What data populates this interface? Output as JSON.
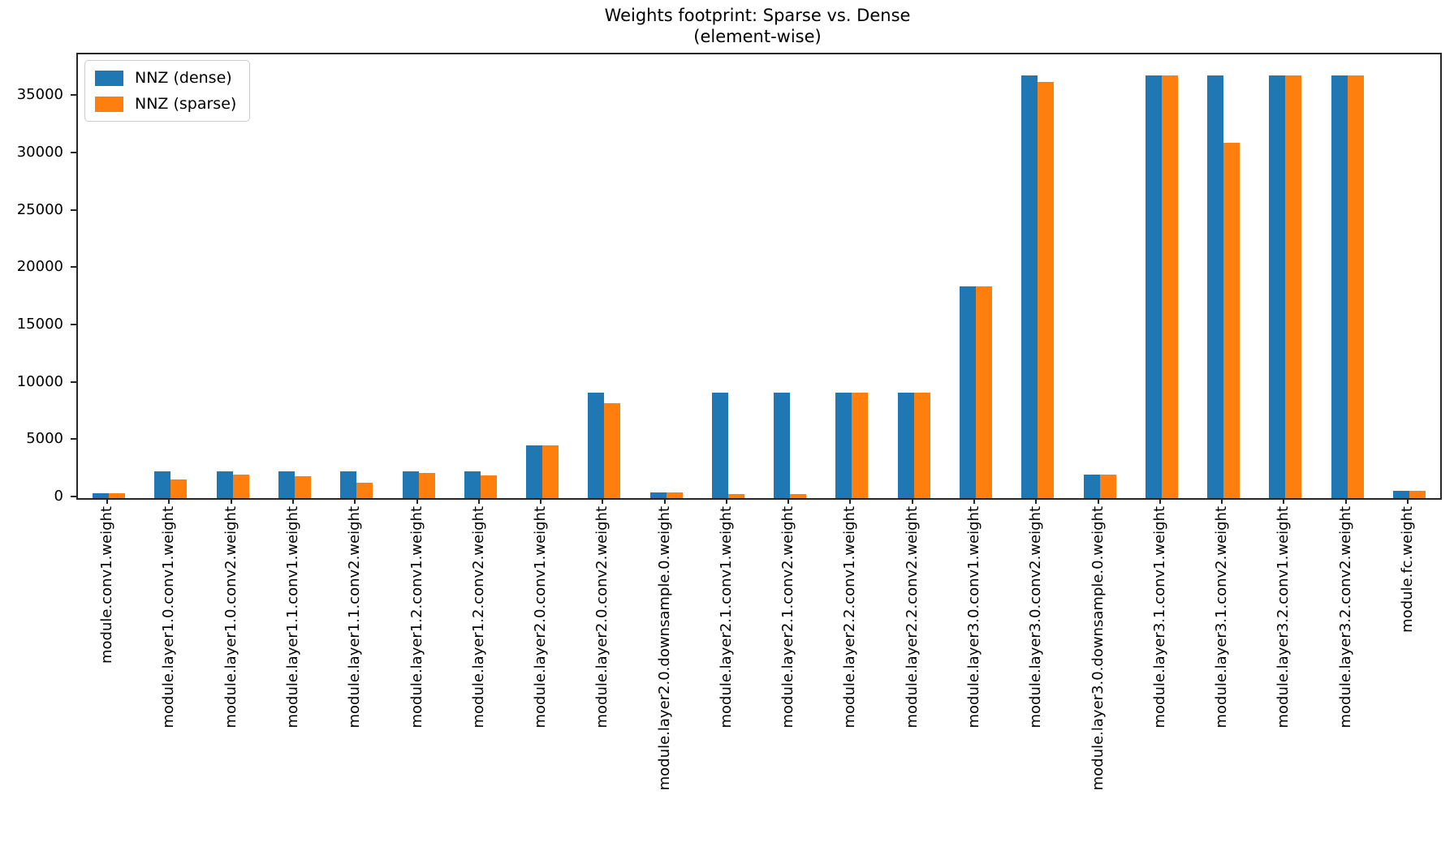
{
  "figure": {
    "title_line1": "Weights footprint: Sparse vs. Dense",
    "title_line2": "(element-wise)"
  },
  "chart_data": {
    "type": "bar",
    "title": "Weights footprint: Sparse vs. Dense\n(element-wise)",
    "xlabel": "",
    "ylabel": "",
    "grid": false,
    "legend_position": "upper left",
    "ylim": [
      0,
      38700
    ],
    "yticks": [
      0,
      5000,
      10000,
      15000,
      20000,
      25000,
      30000,
      35000
    ],
    "categories": [
      "module.conv1.weight",
      "module.layer1.0.conv1.weight",
      "module.layer1.0.conv2.weight",
      "module.layer1.1.conv1.weight",
      "module.layer1.1.conv2.weight",
      "module.layer1.2.conv1.weight",
      "module.layer1.2.conv2.weight",
      "module.layer2.0.conv1.weight",
      "module.layer2.0.conv2.weight",
      "module.layer2.0.downsample.0.weight",
      "module.layer2.1.conv1.weight",
      "module.layer2.1.conv2.weight",
      "module.layer2.2.conv1.weight",
      "module.layer2.2.conv2.weight",
      "module.layer3.0.conv1.weight",
      "module.layer3.0.conv2.weight",
      "module.layer3.0.downsample.0.weight",
      "module.layer3.1.conv1.weight",
      "module.layer3.1.conv2.weight",
      "module.layer3.2.conv1.weight",
      "module.layer3.2.conv2.weight",
      "module.fc.weight"
    ],
    "series": [
      {
        "name": "NNZ (dense)",
        "color": "#1f77b4",
        "values": [
          432,
          2304,
          2304,
          2304,
          2304,
          2304,
          2304,
          4608,
          9216,
          512,
          9216,
          9216,
          9216,
          9216,
          18432,
          36864,
          2048,
          36864,
          36864,
          36864,
          36864,
          640
        ]
      },
      {
        "name": "NNZ (sparse)",
        "color": "#ff7f0e",
        "values": [
          432,
          1600,
          2050,
          1930,
          1370,
          2190,
          1950,
          4608,
          8300,
          512,
          330,
          330,
          9216,
          9216,
          18432,
          36300,
          2048,
          36864,
          31000,
          36864,
          36864,
          640
        ]
      }
    ]
  }
}
